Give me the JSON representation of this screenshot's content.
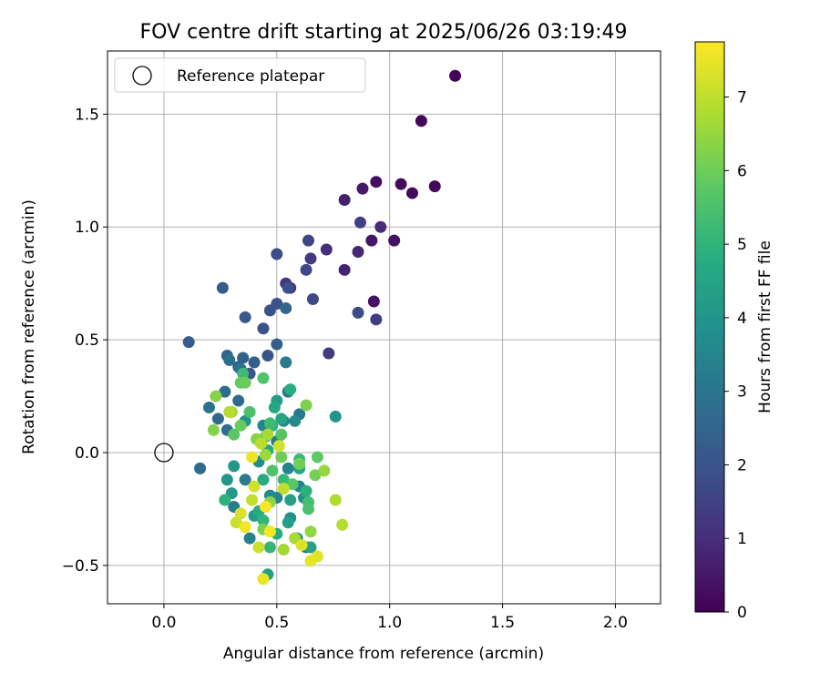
{
  "chart_data": {
    "type": "scatter",
    "title": "FOV centre drift starting at 2025/06/26 03:19:49",
    "xlabel": "Angular distance from reference (arcmin)",
    "ylabel": "Rotation from reference (arcmin)",
    "xlim": [
      -0.25,
      2.2
    ],
    "ylim": [
      -0.67,
      1.78
    ],
    "xticks": [
      0.0,
      0.5,
      1.0,
      1.5,
      2.0
    ],
    "xtick_labels": [
      "0.0",
      "0.5",
      "1.0",
      "1.5",
      "2.0"
    ],
    "yticks": [
      -0.5,
      0.0,
      0.5,
      1.0,
      1.5
    ],
    "ytick_labels": [
      "−0.5",
      "0.0",
      "0.5",
      "1.0",
      "1.5"
    ],
    "grid": true,
    "legend": {
      "position": "top-left",
      "label": "Reference platepar",
      "marker": "open-circle"
    },
    "reference_point": {
      "x": 0.0,
      "y": 0.0
    },
    "colorbar": {
      "label": "Hours from first FF file",
      "min": 0,
      "max": 7.75,
      "ticks": [
        0,
        1,
        2,
        3,
        4,
        5,
        6,
        7
      ],
      "tick_labels": [
        "0",
        "1",
        "2",
        "3",
        "4",
        "5",
        "6",
        "7"
      ],
      "colormap": "viridis"
    },
    "points": [
      {
        "x": 1.29,
        "y": 1.67,
        "hours": 0.05
      },
      {
        "x": 1.14,
        "y": 1.47,
        "hours": 0.1
      },
      {
        "x": 1.2,
        "y": 1.18,
        "hours": 0.15
      },
      {
        "x": 1.1,
        "y": 1.15,
        "hours": 0.2
      },
      {
        "x": 1.05,
        "y": 1.19,
        "hours": 0.25
      },
      {
        "x": 0.94,
        "y": 1.2,
        "hours": 0.3
      },
      {
        "x": 1.02,
        "y": 0.94,
        "hours": 0.35
      },
      {
        "x": 0.93,
        "y": 0.67,
        "hours": 0.4
      },
      {
        "x": 0.92,
        "y": 0.94,
        "hours": 0.45
      },
      {
        "x": 0.88,
        "y": 1.17,
        "hours": 0.55
      },
      {
        "x": 0.8,
        "y": 1.12,
        "hours": 0.65
      },
      {
        "x": 0.8,
        "y": 0.81,
        "hours": 0.75
      },
      {
        "x": 0.86,
        "y": 0.89,
        "hours": 0.85
      },
      {
        "x": 0.96,
        "y": 1.0,
        "hours": 0.95
      },
      {
        "x": 0.72,
        "y": 0.9,
        "hours": 1.05
      },
      {
        "x": 0.56,
        "y": 0.73,
        "hours": 1.1
      },
      {
        "x": 0.54,
        "y": 0.75,
        "hours": 1.2
      },
      {
        "x": 0.65,
        "y": 0.86,
        "hours": 1.3
      },
      {
        "x": 0.73,
        "y": 0.44,
        "hours": 1.35
      },
      {
        "x": 0.94,
        "y": 0.59,
        "hours": 1.4
      },
      {
        "x": 0.87,
        "y": 1.02,
        "hours": 1.5
      },
      {
        "x": 0.64,
        "y": 0.94,
        "hours": 1.6
      },
      {
        "x": 0.63,
        "y": 0.81,
        "hours": 1.65
      },
      {
        "x": 0.66,
        "y": 0.68,
        "hours": 1.7
      },
      {
        "x": 0.86,
        "y": 0.62,
        "hours": 1.75
      },
      {
        "x": 0.5,
        "y": 0.88,
        "hours": 1.8
      },
      {
        "x": 0.55,
        "y": 0.73,
        "hours": 1.85
      },
      {
        "x": 0.47,
        "y": 0.63,
        "hours": 1.9
      },
      {
        "x": 0.5,
        "y": 0.66,
        "hours": 1.95
      },
      {
        "x": 0.44,
        "y": 0.55,
        "hours": 2.0
      },
      {
        "x": 0.46,
        "y": 0.43,
        "hours": 2.05
      },
      {
        "x": 0.38,
        "y": 0.35,
        "hours": 2.1
      },
      {
        "x": 0.36,
        "y": 0.6,
        "hours": 2.15
      },
      {
        "x": 0.26,
        "y": 0.73,
        "hours": 2.2
      },
      {
        "x": 0.11,
        "y": 0.49,
        "hours": 2.25
      },
      {
        "x": 0.5,
        "y": 0.48,
        "hours": 2.3
      },
      {
        "x": 0.4,
        "y": 0.4,
        "hours": 2.35
      },
      {
        "x": 0.35,
        "y": 0.42,
        "hours": 2.4
      },
      {
        "x": 0.33,
        "y": 0.38,
        "hours": 2.45
      },
      {
        "x": 0.28,
        "y": 0.43,
        "hours": 2.5
      },
      {
        "x": 0.54,
        "y": 0.64,
        "hours": 2.55
      },
      {
        "x": 0.24,
        "y": 0.15,
        "hours": 2.6
      },
      {
        "x": 0.16,
        "y": -0.07,
        "hours": 2.65
      },
      {
        "x": 0.33,
        "y": 0.23,
        "hours": 2.7
      },
      {
        "x": 0.27,
        "y": 0.27,
        "hours": 2.75
      },
      {
        "x": 0.28,
        "y": 0.1,
        "hours": 2.8
      },
      {
        "x": 0.29,
        "y": 0.41,
        "hours": 2.85
      },
      {
        "x": 0.2,
        "y": 0.2,
        "hours": 2.9
      },
      {
        "x": 0.34,
        "y": 0.37,
        "hours": 2.95
      },
      {
        "x": 0.55,
        "y": 0.27,
        "hours": 3.0
      },
      {
        "x": 0.6,
        "y": 0.17,
        "hours": 3.05
      },
      {
        "x": 0.5,
        "y": 0.05,
        "hours": 3.1
      },
      {
        "x": 0.54,
        "y": 0.4,
        "hours": 3.15
      },
      {
        "x": 0.36,
        "y": -0.12,
        "hours": 3.2
      },
      {
        "x": 0.31,
        "y": -0.24,
        "hours": 3.25
      },
      {
        "x": 0.38,
        "y": -0.38,
        "hours": 3.3
      },
      {
        "x": 0.5,
        "y": -0.2,
        "hours": 3.35
      },
      {
        "x": 0.55,
        "y": -0.07,
        "hours": 3.4
      },
      {
        "x": 0.6,
        "y": -0.15,
        "hours": 3.45
      },
      {
        "x": 0.63,
        "y": -0.42,
        "hours": 3.5
      },
      {
        "x": 0.44,
        "y": 0.12,
        "hours": 3.55
      },
      {
        "x": 0.53,
        "y": 0.14,
        "hours": 3.6
      },
      {
        "x": 0.58,
        "y": 0.14,
        "hours": 3.65
      },
      {
        "x": 0.42,
        "y": -0.04,
        "hours": 3.7
      },
      {
        "x": 0.47,
        "y": -0.19,
        "hours": 3.75
      },
      {
        "x": 0.56,
        "y": -0.29,
        "hours": 3.8
      },
      {
        "x": 0.59,
        "y": -0.38,
        "hours": 3.85
      },
      {
        "x": 0.62,
        "y": -0.2,
        "hours": 3.9
      },
      {
        "x": 0.36,
        "y": 0.14,
        "hours": 3.95
      },
      {
        "x": 0.76,
        "y": 0.16,
        "hours": 4.0
      },
      {
        "x": 0.28,
        "y": -0.12,
        "hours": 4.05
      },
      {
        "x": 0.31,
        "y": -0.06,
        "hours": 4.1
      },
      {
        "x": 0.3,
        "y": -0.18,
        "hours": 4.15
      },
      {
        "x": 0.4,
        "y": -0.28,
        "hours": 4.2
      },
      {
        "x": 0.5,
        "y": 0.23,
        "hours": 4.25
      },
      {
        "x": 0.55,
        "y": -0.31,
        "hours": 4.3
      },
      {
        "x": 0.46,
        "y": -0.54,
        "hours": 4.35
      },
      {
        "x": 0.56,
        "y": -0.21,
        "hours": 4.4
      },
      {
        "x": 0.65,
        "y": -0.42,
        "hours": 4.45
      },
      {
        "x": 0.6,
        "y": -0.07,
        "hours": 4.5
      },
      {
        "x": 0.52,
        "y": 0.15,
        "hours": 4.55
      },
      {
        "x": 0.49,
        "y": 0.2,
        "hours": 4.6
      },
      {
        "x": 0.46,
        "y": 0.01,
        "hours": 4.65
      },
      {
        "x": 0.44,
        "y": -0.12,
        "hours": 4.7
      },
      {
        "x": 0.42,
        "y": -0.26,
        "hours": 4.75
      },
      {
        "x": 0.5,
        "y": -0.36,
        "hours": 4.8
      },
      {
        "x": 0.56,
        "y": 0.28,
        "hours": 4.85
      },
      {
        "x": 0.63,
        "y": -0.17,
        "hours": 4.9
      },
      {
        "x": 0.27,
        "y": -0.21,
        "hours": 4.95
      },
      {
        "x": 0.48,
        "y": 0.12,
        "hours": 5.0
      },
      {
        "x": 0.44,
        "y": -0.3,
        "hours": 5.05
      },
      {
        "x": 0.47,
        "y": -0.42,
        "hours": 5.1
      },
      {
        "x": 0.53,
        "y": -0.12,
        "hours": 5.15
      },
      {
        "x": 0.6,
        "y": -0.03,
        "hours": 5.2
      },
      {
        "x": 0.35,
        "y": 0.35,
        "hours": 5.25
      },
      {
        "x": 0.47,
        "y": 0.13,
        "hours": 5.3
      },
      {
        "x": 0.64,
        "y": -0.22,
        "hours": 5.35
      },
      {
        "x": 0.45,
        "y": 0.07,
        "hours": 5.4
      },
      {
        "x": 0.64,
        "y": -0.25,
        "hours": 5.45
      },
      {
        "x": 0.38,
        "y": 0.18,
        "hours": 5.5
      },
      {
        "x": 0.48,
        "y": -0.08,
        "hours": 5.55
      },
      {
        "x": 0.44,
        "y": 0.33,
        "hours": 5.6
      },
      {
        "x": 0.52,
        "y": 0.08,
        "hours": 5.65
      },
      {
        "x": 0.57,
        "y": -0.14,
        "hours": 5.7
      },
      {
        "x": 0.31,
        "y": 0.08,
        "hours": 5.75
      },
      {
        "x": 0.68,
        "y": -0.02,
        "hours": 5.8
      },
      {
        "x": 0.34,
        "y": 0.31,
        "hours": 5.85
      },
      {
        "x": 0.34,
        "y": 0.12,
        "hours": 5.9
      },
      {
        "x": 0.36,
        "y": 0.31,
        "hours": 5.95
      },
      {
        "x": 0.52,
        "y": -0.02,
        "hours": 6.0
      },
      {
        "x": 0.6,
        "y": -0.05,
        "hours": 6.05
      },
      {
        "x": 0.67,
        "y": -0.1,
        "hours": 6.1
      },
      {
        "x": 0.44,
        "y": -0.34,
        "hours": 6.15
      },
      {
        "x": 0.63,
        "y": 0.21,
        "hours": 6.2
      },
      {
        "x": 0.22,
        "y": 0.1,
        "hours": 6.25
      },
      {
        "x": 0.23,
        "y": 0.25,
        "hours": 6.3
      },
      {
        "x": 0.41,
        "y": 0.06,
        "hours": 6.35
      },
      {
        "x": 0.47,
        "y": -0.22,
        "hours": 6.4
      },
      {
        "x": 0.65,
        "y": -0.35,
        "hours": 6.45
      },
      {
        "x": 0.71,
        "y": -0.08,
        "hours": 6.5
      },
      {
        "x": 0.3,
        "y": 0.18,
        "hours": 6.55
      },
      {
        "x": 0.45,
        "y": -0.01,
        "hours": 6.6
      },
      {
        "x": 0.53,
        "y": -0.43,
        "hours": 6.65
      },
      {
        "x": 0.58,
        "y": -0.38,
        "hours": 6.7
      },
      {
        "x": 0.46,
        "y": 0.08,
        "hours": 6.75
      },
      {
        "x": 0.76,
        "y": -0.21,
        "hours": 6.8
      },
      {
        "x": 0.79,
        "y": -0.32,
        "hours": 6.85
      },
      {
        "x": 0.29,
        "y": 0.18,
        "hours": 6.9
      },
      {
        "x": 0.43,
        "y": 0.04,
        "hours": 6.95
      },
      {
        "x": 0.53,
        "y": -0.16,
        "hours": 7.0
      },
      {
        "x": 0.39,
        "y": -0.21,
        "hours": 7.05
      },
      {
        "x": 0.32,
        "y": -0.31,
        "hours": 7.1
      },
      {
        "x": 0.42,
        "y": -0.42,
        "hours": 7.15
      },
      {
        "x": 0.51,
        "y": 0.03,
        "hours": 7.2
      },
      {
        "x": 0.4,
        "y": -0.15,
        "hours": 7.25
      },
      {
        "x": 0.34,
        "y": -0.27,
        "hours": 7.3
      },
      {
        "x": 0.61,
        "y": -0.41,
        "hours": 7.35
      },
      {
        "x": 0.68,
        "y": -0.46,
        "hours": 7.4
      },
      {
        "x": 0.65,
        "y": -0.48,
        "hours": 7.45
      },
      {
        "x": 0.44,
        "y": -0.56,
        "hours": 7.5
      },
      {
        "x": 0.39,
        "y": -0.02,
        "hours": 7.55
      },
      {
        "x": 0.36,
        "y": -0.33,
        "hours": 7.6
      },
      {
        "x": 0.47,
        "y": -0.35,
        "hours": 7.65
      },
      {
        "x": 0.45,
        "y": -0.24,
        "hours": 7.7
      }
    ]
  }
}
